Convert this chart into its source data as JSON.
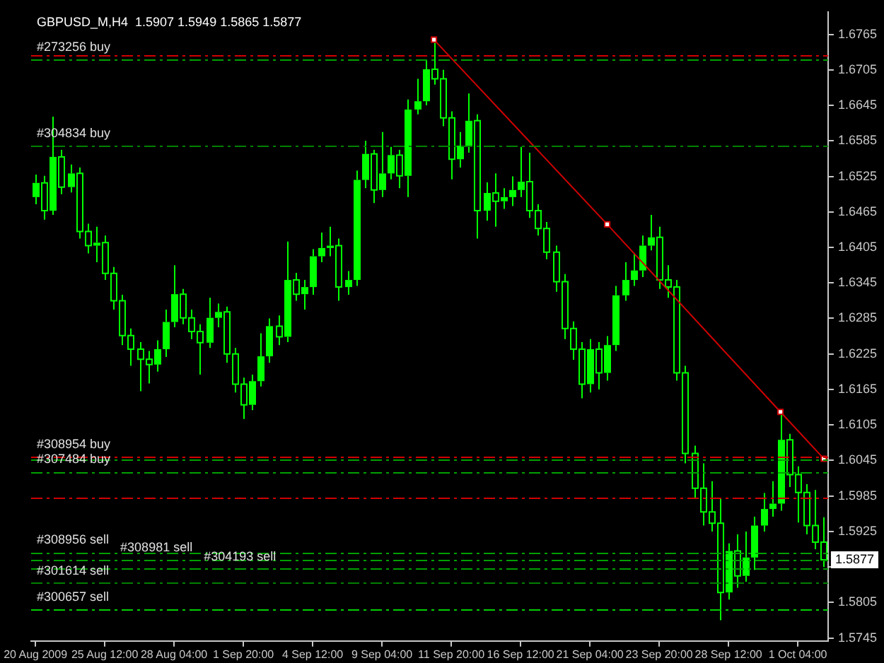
{
  "chart_data": {
    "type": "candlestick",
    "title": "GBPUSD_M,H4  1.5907 1.5949 1.5865 1.5877",
    "categories": [
      "20 Aug 2009",
      null,
      null,
      null,
      null,
      null,
      null,
      null,
      "25 Aug 12:00",
      null,
      null,
      null,
      null,
      null,
      null,
      null,
      "28 Aug 04:00",
      null,
      null,
      null,
      null,
      null,
      null,
      null,
      "1 Sep 20:00",
      null,
      null,
      null,
      null,
      null,
      null,
      null,
      "4 Sep 12:00",
      null,
      null,
      null,
      null,
      null,
      null,
      null,
      "9 Sep 04:00",
      null,
      null,
      null,
      null,
      null,
      null,
      null,
      "11 Sep 20:00",
      null,
      null,
      null,
      null,
      null,
      null,
      null,
      "16 Sep 12:00",
      null,
      null,
      null,
      null,
      null,
      null,
      null,
      "21 Sep 04:00",
      null,
      null,
      null,
      null,
      null,
      null,
      null,
      "23 Sep 20:00",
      null,
      null,
      null,
      null,
      null,
      null,
      null,
      "28 Sep 12:00",
      null,
      null,
      null,
      null,
      null,
      null,
      null,
      "1 Oct 04:00",
      null,
      null,
      null
    ],
    "color": "#00ff00",
    "ohlc": [
      [
        1.649,
        1.6528,
        1.6478,
        1.6514
      ],
      [
        1.6514,
        1.6526,
        1.6452,
        1.6467
      ],
      [
        1.6467,
        1.6626,
        1.646,
        1.6558
      ],
      [
        1.6558,
        1.657,
        1.6495,
        1.6507
      ],
      [
        1.6507,
        1.6545,
        1.6498,
        1.653
      ],
      [
        1.653,
        1.654,
        1.642,
        1.6432
      ],
      [
        1.6432,
        1.6445,
        1.6395,
        1.6408
      ],
      [
        1.6408,
        1.644,
        1.638,
        1.6413
      ],
      [
        1.6413,
        1.6425,
        1.635,
        1.6361
      ],
      [
        1.6361,
        1.6372,
        1.63,
        1.6315
      ],
      [
        1.6315,
        1.6325,
        1.624,
        1.6256
      ],
      [
        1.6256,
        1.6268,
        1.6205,
        1.6233
      ],
      [
        1.6233,
        1.6245,
        1.6162,
        1.6216
      ],
      [
        1.6216,
        1.623,
        1.6175,
        1.6207
      ],
      [
        1.6207,
        1.6248,
        1.6195,
        1.6233
      ],
      [
        1.6233,
        1.63,
        1.622,
        1.6279
      ],
      [
        1.6279,
        1.6375,
        1.627,
        1.6326
      ],
      [
        1.6326,
        1.6335,
        1.6275,
        1.6286
      ],
      [
        1.6286,
        1.63,
        1.625,
        1.6263
      ],
      [
        1.6263,
        1.6275,
        1.619,
        1.6244
      ],
      [
        1.6244,
        1.632,
        1.6235,
        1.6286
      ],
      [
        1.6286,
        1.631,
        1.627,
        1.6296
      ],
      [
        1.6296,
        1.6305,
        1.621,
        1.6225
      ],
      [
        1.6225,
        1.6235,
        1.616,
        1.6174
      ],
      [
        1.6174,
        1.6185,
        1.6115,
        1.6139
      ],
      [
        1.6139,
        1.619,
        1.613,
        1.6179
      ],
      [
        1.6179,
        1.626,
        1.617,
        1.6221
      ],
      [
        1.6221,
        1.6285,
        1.621,
        1.6272
      ],
      [
        1.6272,
        1.629,
        1.624,
        1.6254
      ],
      [
        1.6254,
        1.6415,
        1.6245,
        1.635
      ],
      [
        1.635,
        1.6362,
        1.6315,
        1.6326
      ],
      [
        1.6326,
        1.635,
        1.63,
        1.6338
      ],
      [
        1.6338,
        1.6402,
        1.6325,
        1.639
      ],
      [
        1.639,
        1.643,
        1.638,
        1.6404
      ],
      [
        1.6404,
        1.644,
        1.639,
        1.6408
      ],
      [
        1.6408,
        1.642,
        1.6315,
        1.6338
      ],
      [
        1.6338,
        1.6365,
        1.6325,
        1.635
      ],
      [
        1.635,
        1.6535,
        1.634,
        1.6519
      ],
      [
        1.6519,
        1.6585,
        1.6505,
        1.6563
      ],
      [
        1.6563,
        1.657,
        1.648,
        1.6502
      ],
      [
        1.6502,
        1.66,
        1.649,
        1.653
      ],
      [
        1.653,
        1.6575,
        1.652,
        1.6561
      ],
      [
        1.6561,
        1.657,
        1.6505,
        1.6526
      ],
      [
        1.6526,
        1.6655,
        1.649,
        1.6638
      ],
      [
        1.6638,
        1.669,
        1.663,
        1.6652
      ],
      [
        1.6652,
        1.6722,
        1.6645,
        1.6706
      ],
      [
        1.6706,
        1.6756,
        1.668,
        1.669
      ],
      [
        1.669,
        1.6705,
        1.661,
        1.6624
      ],
      [
        1.6624,
        1.6635,
        1.652,
        1.6554
      ],
      [
        1.6554,
        1.66,
        1.654,
        1.6577
      ],
      [
        1.6577,
        1.6665,
        1.6565,
        1.6619
      ],
      [
        1.6619,
        1.663,
        1.642,
        1.6467
      ],
      [
        1.6467,
        1.6515,
        1.645,
        1.6497
      ],
      [
        1.6497,
        1.653,
        1.644,
        1.6483
      ],
      [
        1.6483,
        1.6505,
        1.647,
        1.649
      ],
      [
        1.649,
        1.6525,
        1.6475,
        1.6502
      ],
      [
        1.6502,
        1.6575,
        1.649,
        1.6516
      ],
      [
        1.6516,
        1.6565,
        1.6455,
        1.6467
      ],
      [
        1.6467,
        1.6478,
        1.6425,
        1.6437
      ],
      [
        1.6437,
        1.6448,
        1.6385,
        1.6397
      ],
      [
        1.6397,
        1.6408,
        1.633,
        1.6347
      ],
      [
        1.6347,
        1.636,
        1.625,
        1.6268
      ],
      [
        1.6268,
        1.628,
        1.6215,
        1.6233
      ],
      [
        1.6233,
        1.6245,
        1.615,
        1.6174
      ],
      [
        1.6174,
        1.625,
        1.616,
        1.6233
      ],
      [
        1.6233,
        1.6245,
        1.6165,
        1.6193
      ],
      [
        1.6193,
        1.6255,
        1.618,
        1.624
      ],
      [
        1.624,
        1.634,
        1.623,
        1.6324
      ],
      [
        1.6324,
        1.638,
        1.6315,
        1.635
      ],
      [
        1.635,
        1.6395,
        1.634,
        1.6366
      ],
      [
        1.6366,
        1.6425,
        1.6355,
        1.6408
      ],
      [
        1.6408,
        1.646,
        1.64,
        1.6422
      ],
      [
        1.6422,
        1.644,
        1.6335,
        1.635
      ],
      [
        1.635,
        1.6375,
        1.632,
        1.6338
      ],
      [
        1.6338,
        1.635,
        1.618,
        1.6193
      ],
      [
        1.6193,
        1.6205,
        1.604,
        1.6057
      ],
      [
        1.6057,
        1.607,
        1.598,
        1.5998
      ],
      [
        1.5998,
        1.604,
        1.5935,
        1.5958
      ],
      [
        1.5958,
        1.601,
        1.5925,
        1.5939
      ],
      [
        1.5939,
        1.598,
        1.5775,
        1.5822
      ],
      [
        1.5822,
        1.5905,
        1.581,
        1.5892
      ],
      [
        1.5892,
        1.592,
        1.583,
        1.585
      ],
      [
        1.585,
        1.5925,
        1.584,
        1.5881
      ],
      [
        1.5881,
        1.595,
        1.586,
        1.5935
      ],
      [
        1.5935,
        1.599,
        1.5925,
        1.5963
      ],
      [
        1.5963,
        1.601,
        1.595,
        1.5972
      ],
      [
        1.5972,
        1.6127,
        1.596,
        1.608
      ],
      [
        1.608,
        1.609,
        1.6,
        1.6021
      ],
      [
        1.6021,
        1.6035,
        1.594,
        1.5991
      ],
      [
        1.5991,
        1.6005,
        1.592,
        1.5935
      ],
      [
        1.5935,
        1.5995,
        1.5895,
        1.5907
      ],
      [
        1.5907,
        1.5949,
        1.5865,
        1.5877
      ]
    ],
    "series": [
      {
        "type": "line",
        "color": "#d00000",
        "marker": "square",
        "values": [
          null,
          null,
          null,
          null,
          null,
          null,
          null,
          null,
          null,
          null,
          null,
          null,
          null,
          null,
          null,
          null,
          null,
          null,
          null,
          null,
          null,
          null,
          null,
          null,
          null,
          null,
          null,
          null,
          null,
          null,
          null,
          null,
          null,
          null,
          null,
          null,
          null,
          null,
          null,
          null,
          null,
          null,
          null,
          null,
          null,
          null,
          1.6756,
          null,
          null,
          null,
          null,
          null,
          null,
          null,
          null,
          null,
          null,
          null,
          null,
          null,
          null,
          null,
          null,
          null,
          null,
          null,
          1.6444,
          null,
          null,
          null,
          null,
          null,
          null,
          null,
          null,
          null,
          null,
          null,
          null,
          null,
          null,
          null,
          null,
          null,
          null,
          null,
          1.6127,
          null,
          null,
          null,
          null,
          1.6048
        ]
      }
    ],
    "ylim": [
      1.574,
      1.6803
    ],
    "yticks": [
      1.5745,
      1.5805,
      {
        "value": 1.5865,
        "label": null
      },
      1.5925,
      1.5985,
      1.6045,
      1.6105,
      1.6165,
      1.6225,
      1.6285,
      1.6345,
      1.6405,
      1.6465,
      1.6525,
      1.6585,
      1.6645,
      1.6705,
      1.6765
    ],
    "ref_lines": [
      {
        "axis": "y",
        "value": 1.673,
        "label": null,
        "color": "#d00000",
        "line_style": "dashed"
      },
      {
        "axis": "y",
        "value": 1.6723,
        "label": "#273256 buy",
        "color": "#00a000",
        "line_style": "dashed"
      },
      {
        "axis": "y",
        "value": 1.6577,
        "label": "#304834 buy",
        "color": "#008000",
        "line_style": "dashed"
      },
      {
        "axis": "y",
        "value": 1.6052,
        "label": "#308954 buy",
        "color": "#d00000",
        "line_style": "dashed"
      },
      {
        "axis": "y",
        "value": 1.6046,
        "label": null,
        "color": "#00a000",
        "line_style": "dashed"
      },
      {
        "axis": "y",
        "value": 1.6026,
        "label": "#307484 buy",
        "color": "#00a000",
        "line_style": "dashed"
      },
      {
        "axis": "y",
        "value": 1.5983,
        "label": null,
        "color": "#d00000",
        "line_style": "dashed"
      },
      {
        "axis": "y",
        "value": 1.589,
        "label": "#308956 sell",
        "color": "#00a000",
        "line_style": "dashed"
      },
      {
        "axis": "y",
        "value": 1.5877,
        "label": "#308981 sell",
        "color": "#00a000",
        "line_style": "dashed"
      },
      {
        "axis": "y",
        "value": 1.5862,
        "label": "#304193 sell",
        "color": "#00a000",
        "line_style": "dashed"
      },
      {
        "axis": "y",
        "value": 1.5838,
        "label": "#301614 sell",
        "color": "#008000",
        "line_style": "dashed"
      },
      {
        "axis": "y",
        "value": 1.5794,
        "label": "#300657 sell",
        "color": "#00d000",
        "line_style": "dashed"
      }
    ],
    "annotations": [
      {
        "text": "1.5877",
        "y": 1.5877
      }
    ],
    "grid": false,
    "legend": false
  }
}
